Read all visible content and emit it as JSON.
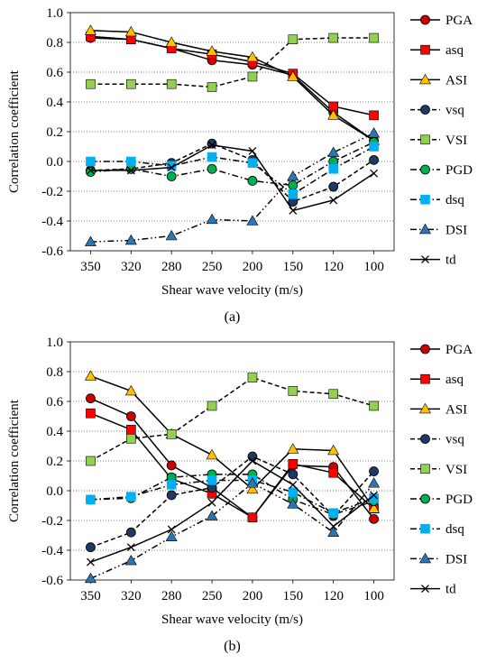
{
  "chart_data": [
    {
      "type": "line",
      "panel_label": "(a)",
      "xlabel": "Shear wave velocity (m/s)",
      "ylabel": "Correlation coefficient",
      "categories": [
        "350",
        "320",
        "280",
        "250",
        "200",
        "150",
        "120",
        "100"
      ],
      "ylim": [
        -0.6,
        1.0
      ],
      "yticks": [
        "-0.6",
        "-0.4",
        "-0.2",
        "0.0",
        "0.2",
        "0.4",
        "0.6",
        "0.8",
        "1.0"
      ],
      "grid": "horizontal dotted",
      "legend_position": "right",
      "series": [
        {
          "name": "PGA",
          "marker": "circle",
          "color": "#cc0000",
          "line": "solid",
          "values": [
            0.83,
            0.82,
            0.76,
            0.68,
            0.65,
            0.58,
            0.33,
            0.14
          ]
        },
        {
          "name": "asq",
          "marker": "square",
          "color": "#ff0000",
          "line": "solid",
          "values": [
            0.84,
            0.82,
            0.76,
            0.72,
            0.67,
            0.59,
            0.37,
            0.31
          ]
        },
        {
          "name": "ASI",
          "marker": "triangle",
          "color": "#ffc000",
          "line": "solid",
          "values": [
            0.88,
            0.87,
            0.8,
            0.74,
            0.7,
            0.57,
            0.31,
            0.14
          ]
        },
        {
          "name": "vsq",
          "marker": "circle",
          "color": "#1f3864",
          "line": "dash",
          "values": [
            -0.06,
            -0.05,
            -0.01,
            0.12,
            0.01,
            -0.27,
            -0.17,
            0.01
          ]
        },
        {
          "name": "VSI",
          "marker": "square",
          "color": "#92d050",
          "line": "dash",
          "values": [
            0.52,
            0.52,
            0.52,
            0.5,
            0.57,
            0.82,
            0.83,
            0.83
          ]
        },
        {
          "name": "PGD",
          "marker": "circle",
          "color": "#00b050",
          "line": "dashdot",
          "values": [
            -0.07,
            -0.05,
            -0.1,
            -0.05,
            -0.13,
            -0.16,
            0.0,
            0.13
          ]
        },
        {
          "name": "dsq",
          "marker": "square",
          "color": "#00b0f0",
          "line": "dashdot",
          "values": [
            0.0,
            0.0,
            -0.03,
            0.03,
            -0.01,
            -0.22,
            -0.05,
            0.1
          ]
        },
        {
          "name": "DSI",
          "marker": "triangle",
          "color": "#2e75b6",
          "line": "dashdotdot",
          "values": [
            -0.54,
            -0.53,
            -0.5,
            -0.39,
            -0.4,
            -0.1,
            0.06,
            0.19
          ]
        },
        {
          "name": "td",
          "marker": "x",
          "color": "#000000",
          "line": "solid",
          "values": [
            -0.06,
            -0.06,
            -0.04,
            0.11,
            0.07,
            -0.33,
            -0.26,
            -0.08
          ]
        }
      ]
    },
    {
      "type": "line",
      "panel_label": "(b)",
      "xlabel": "Shear wave velocity (m/s)",
      "ylabel": "Correlation coefficient",
      "categories": [
        "350",
        "320",
        "280",
        "250",
        "200",
        "150",
        "120",
        "100"
      ],
      "ylim": [
        -0.6,
        1.0
      ],
      "yticks": [
        "-0.6",
        "-0.4",
        "-0.2",
        "0.0",
        "0.2",
        "0.4",
        "0.6",
        "0.8",
        "1.0"
      ],
      "grid": "horizontal dotted",
      "legend_position": "right",
      "series": [
        {
          "name": "PGA",
          "marker": "circle",
          "color": "#cc0000",
          "line": "solid",
          "values": [
            0.62,
            0.5,
            0.17,
            0.02,
            -0.18,
            0.17,
            0.16,
            -0.19
          ]
        },
        {
          "name": "asq",
          "marker": "square",
          "color": "#ff0000",
          "line": "solid",
          "values": [
            0.52,
            0.41,
            0.08,
            -0.02,
            -0.18,
            0.18,
            0.12,
            -0.12
          ]
        },
        {
          "name": "ASI",
          "marker": "triangle",
          "color": "#ffc000",
          "line": "solid",
          "values": [
            0.77,
            0.67,
            0.38,
            0.24,
            0.01,
            0.28,
            0.27,
            -0.12
          ]
        },
        {
          "name": "vsq",
          "marker": "circle",
          "color": "#1f3864",
          "line": "dash",
          "values": [
            -0.38,
            -0.28,
            -0.03,
            0.02,
            0.23,
            0.11,
            -0.17,
            0.13
          ]
        },
        {
          "name": "VSI",
          "marker": "square",
          "color": "#92d050",
          "line": "dash",
          "values": [
            0.2,
            0.35,
            0.38,
            0.57,
            0.76,
            0.67,
            0.65,
            0.57
          ]
        },
        {
          "name": "PGD",
          "marker": "circle",
          "color": "#00b050",
          "line": "dashdot",
          "values": [
            -0.06,
            -0.05,
            0.09,
            0.11,
            0.11,
            -0.06,
            -0.16,
            -0.07
          ]
        },
        {
          "name": "dsq",
          "marker": "square",
          "color": "#00b0f0",
          "line": "dashdot",
          "values": [
            -0.06,
            -0.04,
            0.04,
            0.07,
            0.07,
            -0.01,
            -0.15,
            -0.05
          ]
        },
        {
          "name": "DSI",
          "marker": "triangle",
          "color": "#2e75b6",
          "line": "dashdotdot",
          "values": [
            -0.59,
            -0.47,
            -0.31,
            -0.17,
            0.05,
            -0.09,
            -0.28,
            0.05
          ]
        },
        {
          "name": "td",
          "marker": "x",
          "color": "#000000",
          "line": "solid",
          "values": [
            -0.48,
            -0.38,
            -0.26,
            -0.08,
            0.2,
            0.04,
            -0.24,
            -0.03
          ]
        }
      ]
    }
  ]
}
